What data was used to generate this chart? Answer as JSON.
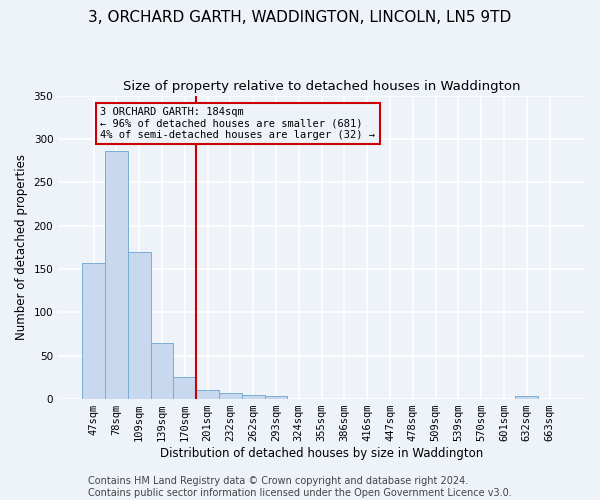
{
  "title": "3, ORCHARD GARTH, WADDINGTON, LINCOLN, LN5 9TD",
  "subtitle": "Size of property relative to detached houses in Waddington",
  "xlabel": "Distribution of detached houses by size in Waddington",
  "ylabel": "Number of detached properties",
  "categories": [
    "47sqm",
    "78sqm",
    "109sqm",
    "139sqm",
    "170sqm",
    "201sqm",
    "232sqm",
    "262sqm",
    "293sqm",
    "324sqm",
    "355sqm",
    "386sqm",
    "416sqm",
    "447sqm",
    "478sqm",
    "509sqm",
    "539sqm",
    "570sqm",
    "601sqm",
    "632sqm",
    "663sqm"
  ],
  "values": [
    157,
    286,
    170,
    65,
    25,
    10,
    7,
    5,
    4,
    0,
    0,
    0,
    0,
    0,
    0,
    0,
    0,
    0,
    0,
    4,
    0
  ],
  "bar_color": "#c8d9ef",
  "bar_edge_color": "#7aadd4",
  "vline_x_index": 4.5,
  "annotation_title": "3 ORCHARD GARTH: 184sqm",
  "annotation_line1": "← 96% of detached houses are smaller (681)",
  "annotation_line2": "4% of semi-detached houses are larger (32) →",
  "vline_color": "#cc0000",
  "annotation_box_edge_color": "#cc0000",
  "footer1": "Contains HM Land Registry data © Crown copyright and database right 2024.",
  "footer2": "Contains public sector information licensed under the Open Government Licence v3.0.",
  "ylim": [
    0,
    350
  ],
  "yticks": [
    0,
    50,
    100,
    150,
    200,
    250,
    300,
    350
  ],
  "title_fontsize": 11,
  "subtitle_fontsize": 9.5,
  "axis_label_fontsize": 8.5,
  "tick_fontsize": 7.5,
  "footer_fontsize": 7,
  "background_color": "#eef2f9",
  "grid_color": "#ffffff"
}
